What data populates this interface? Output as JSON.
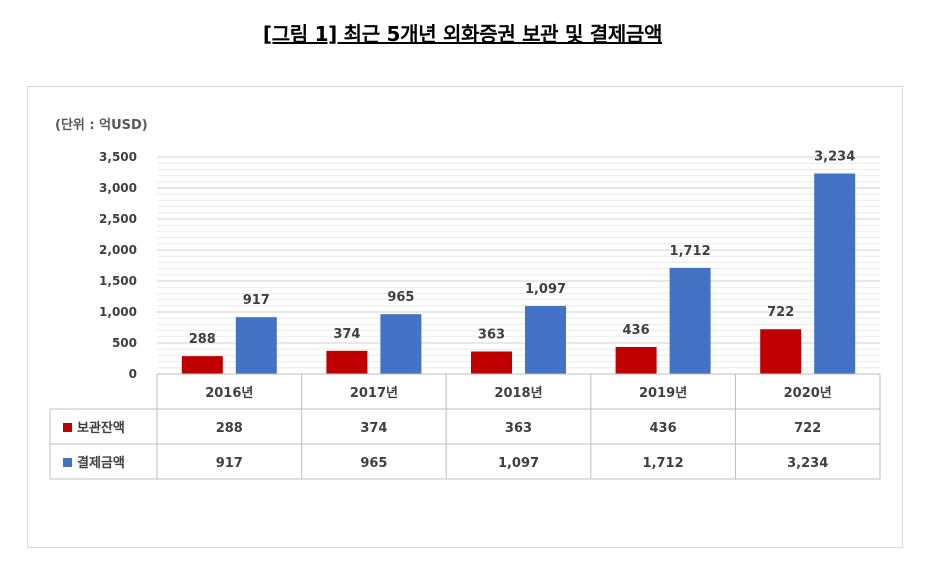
{
  "title": "[그림 1] 최근 5개년 외화증권 보관 및 결제금액",
  "unit_label": "(단위 : 억USD)",
  "colors": {
    "custody": "#c00000",
    "settlement": "#4472c4",
    "grid": "#d9d9d9",
    "text": "#404040"
  },
  "chart_data": {
    "type": "bar",
    "categories": [
      "2016년",
      "2017년",
      "2018년",
      "2019년",
      "2020년"
    ],
    "series": [
      {
        "name": "보관잔액",
        "values": [
          288,
          374,
          363,
          436,
          722
        ],
        "labels": [
          "288",
          "374",
          "363",
          "436",
          "722"
        ]
      },
      {
        "name": "결제금액",
        "values": [
          917,
          965,
          1097,
          1712,
          3234
        ],
        "labels": [
          "917",
          "965",
          "1,097",
          "1,712",
          "3,234"
        ]
      }
    ],
    "ylim": [
      0,
      3500
    ],
    "yticks": [
      0,
      500,
      1000,
      1500,
      2000,
      2500,
      3000,
      3500
    ],
    "ytick_labels": [
      "0",
      "500",
      "1,000",
      "1,500",
      "2,000",
      "2,500",
      "3,000",
      "3,500"
    ],
    "grid": true,
    "legend": "data-table"
  }
}
